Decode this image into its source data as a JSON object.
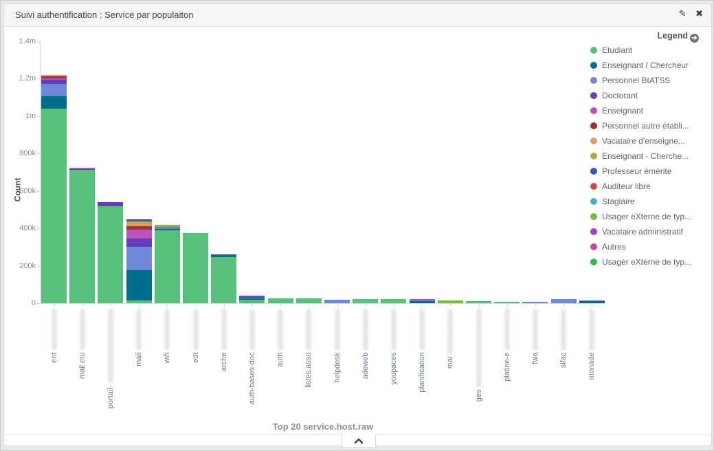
{
  "panel": {
    "title": "Suivi authentification : Service par populaiton",
    "edit_icon": "pencil",
    "close_icon": "x"
  },
  "legend": {
    "title": "Legend",
    "items": [
      {
        "label": "Etudiant",
        "color": "#57c17b"
      },
      {
        "label": "Enseignant / Chercheur",
        "color": "#006e8a"
      },
      {
        "label": "Personnel BIATSS",
        "color": "#6f87d8"
      },
      {
        "label": "Doctorant",
        "color": "#663db8"
      },
      {
        "label": "Enseignant",
        "color": "#bc52bc"
      },
      {
        "label": "Personnel autre établi...",
        "color": "#9e3533"
      },
      {
        "label": "Vacataire d'enseigne...",
        "color": "#daa05d"
      },
      {
        "label": "Enseignant - Cherche...",
        "color": "#b6a943"
      },
      {
        "label": "Professeur émérite",
        "color": "#4151c4"
      },
      {
        "label": "Auditeur libre",
        "color": "#c9503f"
      },
      {
        "label": "Stagiaire",
        "color": "#44b5c9"
      },
      {
        "label": "Usager eXterne de typ...",
        "color": "#74bd43"
      },
      {
        "label": "Vacataire administratif",
        "color": "#9a41c8"
      },
      {
        "label": "Autres",
        "color": "#c44aa5"
      },
      {
        "label": "Usager eXterne de typ...",
        "color": "#35b84f"
      }
    ]
  },
  "chart_data": {
    "type": "bar",
    "stacked": true,
    "title": "Suivi authentification : Service par populaiton",
    "xlabel": "Top 20 service.host.raw",
    "ylabel": "Count",
    "ylim": [
      0,
      1400000
    ],
    "grid": false,
    "legend_position": "top-right",
    "yticks": [
      {
        "label": "0",
        "value": 0
      },
      {
        "label": "200k",
        "value": 200000
      },
      {
        "label": "400k",
        "value": 400000
      },
      {
        "label": "600k",
        "value": 600000
      },
      {
        "label": "800k",
        "value": 800000
      },
      {
        "label": "1m",
        "value": 1000000
      },
      {
        "label": "1.2m",
        "value": 1200000
      },
      {
        "label": "1.4m",
        "value": 1400000
      }
    ],
    "categories": [
      {
        "prefix": "ent",
        "redacted_chars": 10
      },
      {
        "prefix": "mail.etu",
        "redacted_chars": 10
      },
      {
        "prefix": "portail-",
        "redacted_chars": 18
      },
      {
        "prefix": "mail",
        "redacted_chars": 10
      },
      {
        "prefix": "wifi",
        "redacted_chars": 10
      },
      {
        "prefix": "edt",
        "redacted_chars": 10
      },
      {
        "prefix": "arche",
        "redacted_chars": 10
      },
      {
        "prefix": "auth-bases-doc",
        "redacted_chars": 10
      },
      {
        "prefix": "auth",
        "redacted_chars": 10
      },
      {
        "prefix": "listes.asso",
        "redacted_chars": 10
      },
      {
        "prefix": "helpdesk",
        "redacted_chars": 10
      },
      {
        "prefix": "adeweb",
        "redacted_chars": 10
      },
      {
        "prefix": "youpaces",
        "redacted_chars": 10
      },
      {
        "prefix": "planification",
        "redacted_chars": 10
      },
      {
        "prefix": "mai",
        "redacted_chars": 11
      },
      {
        "prefix": "ges",
        "redacted_chars": 19
      },
      {
        "prefix": "platine-e",
        "redacted_chars": 10
      },
      {
        "prefix": "fwa",
        "redacted_chars": 10
      },
      {
        "prefix": "sifac",
        "redacted_chars": 10
      },
      {
        "prefix": "monade",
        "redacted_chars": 10
      }
    ],
    "series": [
      {
        "name": "Etudiant",
        "color": "#57c17b",
        "values": [
          1040000,
          712000,
          520000,
          15000,
          390000,
          374000,
          248000,
          20000,
          25000,
          25000,
          0,
          21000,
          21000,
          0,
          0,
          11000,
          6000,
          0,
          0,
          0
        ]
      },
      {
        "name": "Enseignant / Chercheur",
        "color": "#006e8a",
        "values": [
          65000,
          0,
          0,
          160000,
          5000,
          0,
          9000,
          5000,
          0,
          0,
          0,
          0,
          0,
          10000,
          0,
          0,
          0,
          0,
          0,
          10000
        ]
      },
      {
        "name": "Personnel BIATSS",
        "color": "#6f87d8",
        "values": [
          67000,
          0,
          0,
          125000,
          6000,
          0,
          0,
          4000,
          0,
          0,
          20000,
          0,
          0,
          6000,
          0,
          0,
          0,
          6000,
          22000,
          0
        ]
      },
      {
        "name": "Doctorant",
        "color": "#663db8",
        "values": [
          23000,
          6000,
          22000,
          45000,
          0,
          0,
          4000,
          0,
          0,
          0,
          0,
          0,
          0,
          0,
          0,
          0,
          0,
          0,
          0,
          0
        ]
      },
      {
        "name": "Enseignant",
        "color": "#bc52bc",
        "values": [
          8000,
          2000,
          0,
          48000,
          6000,
          0,
          0,
          0,
          0,
          0,
          0,
          0,
          0,
          0,
          0,
          0,
          0,
          0,
          0,
          0
        ]
      },
      {
        "name": "Personnel autre établi...",
        "color": "#9e3533",
        "values": [
          8000,
          0,
          0,
          20000,
          0,
          0,
          0,
          0,
          0,
          0,
          0,
          0,
          0,
          0,
          0,
          0,
          0,
          0,
          0,
          0
        ]
      },
      {
        "name": "Vacataire d'enseigne...",
        "color": "#daa05d",
        "values": [
          8000,
          0,
          0,
          12000,
          0,
          0,
          0,
          0,
          0,
          0,
          0,
          0,
          0,
          0,
          0,
          0,
          0,
          0,
          0,
          0
        ]
      },
      {
        "name": "Enseignant - Cherche...",
        "color": "#b6a943",
        "values": [
          0,
          0,
          0,
          12000,
          0,
          0,
          0,
          0,
          0,
          0,
          0,
          0,
          0,
          0,
          0,
          0,
          0,
          0,
          0,
          0
        ]
      },
      {
        "name": "Professeur émérite",
        "color": "#4151c4",
        "values": [
          0,
          0,
          0,
          13000,
          0,
          0,
          0,
          4000,
          0,
          0,
          0,
          0,
          0,
          0,
          0,
          0,
          0,
          0,
          0,
          0
        ]
      },
      {
        "name": "Auditeur libre",
        "color": "#c9503f",
        "values": [
          0,
          0,
          0,
          0,
          0,
          0,
          0,
          0,
          0,
          0,
          0,
          0,
          0,
          0,
          0,
          0,
          0,
          0,
          0,
          0
        ]
      },
      {
        "name": "Stagiaire",
        "color": "#44b5c9",
        "values": [
          0,
          0,
          0,
          0,
          0,
          0,
          0,
          0,
          0,
          0,
          0,
          0,
          0,
          0,
          0,
          0,
          0,
          0,
          0,
          0
        ]
      },
      {
        "name": "Usager eXterne de typ... (1)",
        "color": "#74bd43",
        "values": [
          0,
          0,
          0,
          0,
          13000,
          0,
          0,
          0,
          0,
          0,
          0,
          0,
          0,
          0,
          13000,
          0,
          0,
          0,
          0,
          0
        ]
      },
      {
        "name": "Vacataire administratif",
        "color": "#9a41c8",
        "values": [
          0,
          0,
          0,
          0,
          0,
          0,
          0,
          0,
          0,
          0,
          0,
          0,
          0,
          0,
          0,
          0,
          0,
          0,
          0,
          0
        ]
      },
      {
        "name": "Autres",
        "color": "#c44aa5",
        "values": [
          0,
          0,
          0,
          0,
          0,
          0,
          0,
          4000,
          0,
          0,
          0,
          0,
          0,
          2000,
          0,
          0,
          0,
          0,
          0,
          2000
        ]
      },
      {
        "name": "Usager eXterne de typ... (2)",
        "color": "#35b84f",
        "values": [
          0,
          0,
          0,
          0,
          0,
          0,
          0,
          0,
          0,
          0,
          0,
          0,
          0,
          0,
          0,
          0,
          0,
          0,
          0,
          0
        ]
      }
    ]
  },
  "footer": {
    "collapse_icon": "chevron-up"
  }
}
